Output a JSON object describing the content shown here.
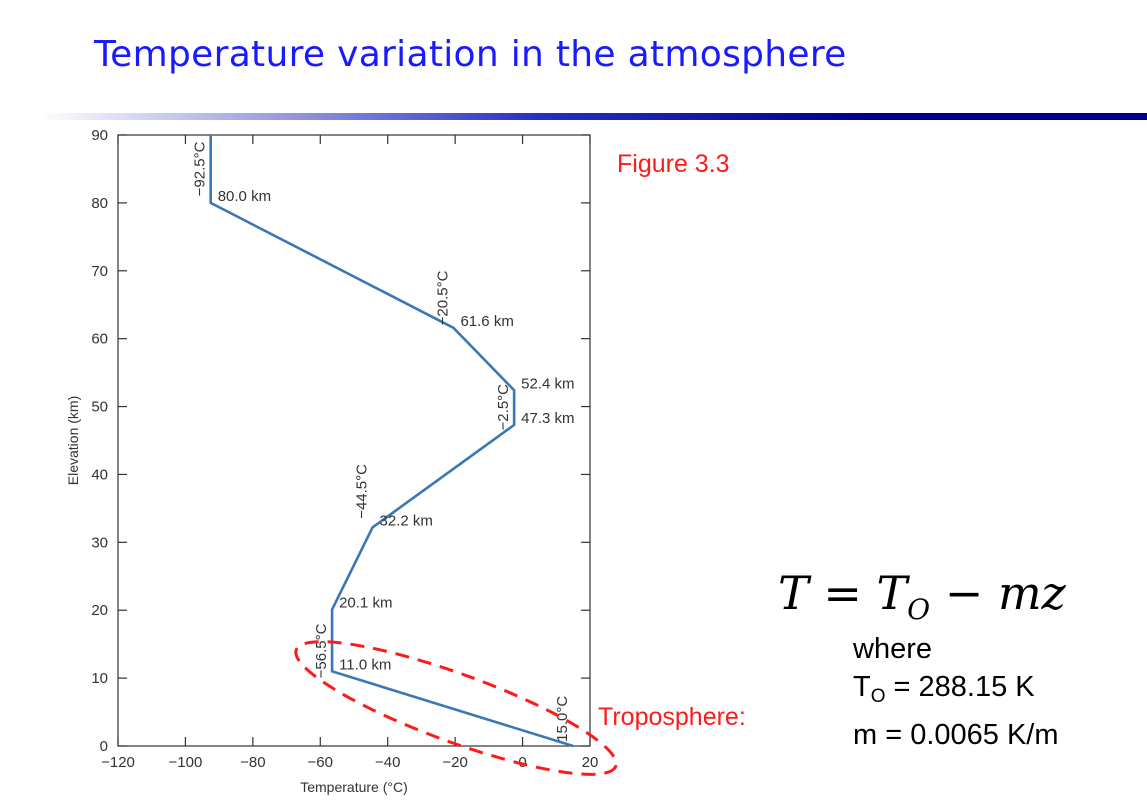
{
  "slide": {
    "title": "Temperature variation in the atmosphere",
    "figure_label": "Figure 3.3"
  },
  "formula": {
    "lhs": "T",
    "eq": "=",
    "t": "T",
    "t_sub": "O",
    "minus": "−",
    "rhs": "mz",
    "where": "where",
    "t0_symbol": "T",
    "t0_sub": "O",
    "t0_value": " = 288.15 K",
    "m_text": "m = 0.0065 K/m"
  },
  "colors": {
    "title": "#1a1aff",
    "line": "#3a78b5",
    "annotation": "#ff1a1a"
  },
  "chart_data": {
    "type": "line",
    "title": "",
    "xlabel": "Temperature (°C)",
    "ylabel": "Elevation (km)",
    "xlim": [
      -120,
      20
    ],
    "ylim": [
      0,
      90
    ],
    "xticks": [
      -120,
      -100,
      -80,
      -60,
      -40,
      -20,
      0,
      20
    ],
    "yticks": [
      0,
      10,
      20,
      30,
      40,
      50,
      60,
      70,
      80,
      90
    ],
    "grid": false,
    "series": [
      {
        "points": [
          {
            "x": 15.0,
            "y": 0
          },
          {
            "x": -56.5,
            "y": 11.0
          },
          {
            "x": -56.5,
            "y": 20.1
          },
          {
            "x": -44.5,
            "y": 32.2
          },
          {
            "x": -2.5,
            "y": 47.3
          },
          {
            "x": -2.5,
            "y": 52.4
          },
          {
            "x": -20.5,
            "y": 61.6
          },
          {
            "x": -92.5,
            "y": 80.0
          },
          {
            "x": -92.5,
            "y": 90
          }
        ]
      }
    ],
    "temperature_labels": [
      {
        "text": "−92.5°C",
        "x": -92.5,
        "y": 85
      },
      {
        "text": "−20.5°C",
        "x": -20.5,
        "y": 66
      },
      {
        "text": "−2.5°C",
        "x": -2.5,
        "y": 49.9
      },
      {
        "text": "−44.5°C",
        "x": -44.5,
        "y": 37.5
      },
      {
        "text": "−56.5°C",
        "x": -56.5,
        "y": 14
      },
      {
        "text": "15.0°C",
        "x": 15.0,
        "y": 4
      }
    ],
    "altitude_labels": [
      {
        "text": "80.0 km",
        "x": -92.5,
        "y": 80.0
      },
      {
        "text": "61.6 km",
        "x": -20.5,
        "y": 61.6
      },
      {
        "text": "52.4 km",
        "x": -2.5,
        "y": 52.4
      },
      {
        "text": "47.3 km",
        "x": -2.5,
        "y": 47.3
      },
      {
        "text": "32.2 km",
        "x": -44.5,
        "y": 32.2
      },
      {
        "text": "20.1 km",
        "x": -56.5,
        "y": 20.1
      },
      {
        "text": "11.0 km",
        "x": -56.5,
        "y": 11.0
      }
    ],
    "annotations": [
      {
        "text": "Troposphere:",
        "shape": "dashed-ellipse"
      }
    ]
  }
}
